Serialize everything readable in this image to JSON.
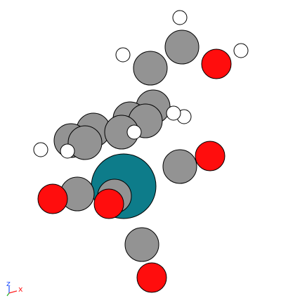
{
  "colors": {
    "background": "#ffffff",
    "carbon": "#939393",
    "hydrogen": "#ffffff",
    "oxygen": "#ff0d0d",
    "metal": "#0d7c8a",
    "outline": "#000000",
    "axis_x": "#ff2020",
    "axis_y": "#20b020",
    "axis_z": "#2050ff"
  },
  "axis_triad": {
    "z_label": "z",
    "x_label": "x"
  },
  "atom_types": [
    "carbon",
    "hydrogen",
    "oxygen",
    "metal"
  ]
}
